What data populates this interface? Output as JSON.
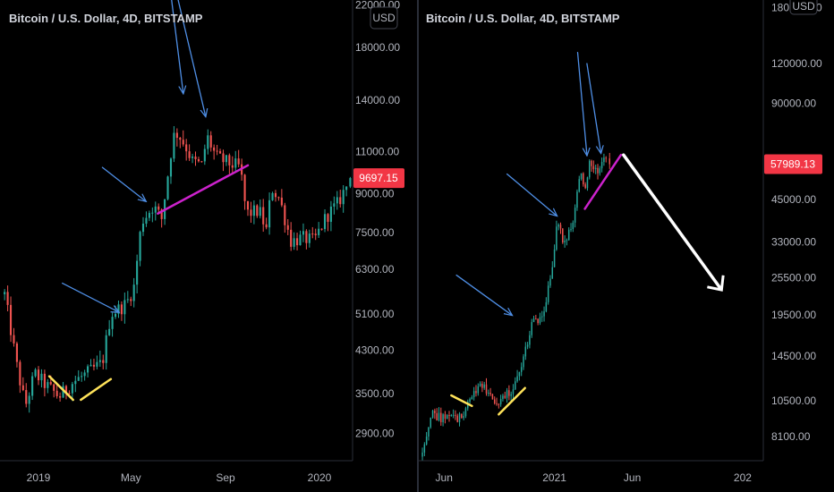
{
  "chart_data": [
    {
      "type": "candlestick",
      "title": "Bitcoin / U.S. Dollar, 4D, BITSTAMP",
      "currency_button": "USD",
      "last_price": 9697.15,
      "last_price_label": "9697.15",
      "scale": "log",
      "ylim": [
        2550,
        22500
      ],
      "x_ticks": [
        {
          "label": "2019",
          "date": "2019-01-01"
        },
        {
          "label": "May",
          "date": "2019-05-01"
        },
        {
          "label": "Sep",
          "date": "2019-09-01"
        },
        {
          "label": "2020",
          "date": "2020-01-01"
        }
      ],
      "y_ticks": [
        "22000.00",
        "18000.00",
        "14000.00",
        "11000.00",
        "9000.00",
        "7500.00",
        "6300.00",
        "5100.00",
        "4300.00",
        "3500.00",
        "2900.00"
      ],
      "price_points": [
        {
          "date": "2018-11-18",
          "price": 5600
        },
        {
          "date": "2018-12-05",
          "price": 3900
        },
        {
          "date": "2018-12-15",
          "price": 3300
        },
        {
          "date": "2018-12-27",
          "price": 3850
        },
        {
          "date": "2019-01-10",
          "price": 3650
        },
        {
          "date": "2019-01-28",
          "price": 3450
        },
        {
          "date": "2019-02-15",
          "price": 3700
        },
        {
          "date": "2019-03-05",
          "price": 3850
        },
        {
          "date": "2019-03-25",
          "price": 4050
        },
        {
          "date": "2019-04-05",
          "price": 5100
        },
        {
          "date": "2019-04-25",
          "price": 5350
        },
        {
          "date": "2019-05-05",
          "price": 5800
        },
        {
          "date": "2019-05-15",
          "price": 7900
        },
        {
          "date": "2019-05-30",
          "price": 8500
        },
        {
          "date": "2019-06-10",
          "price": 8000
        },
        {
          "date": "2019-06-25",
          "price": 11800
        },
        {
          "date": "2019-07-01",
          "price": 12000
        },
        {
          "date": "2019-07-12",
          "price": 11200
        },
        {
          "date": "2019-07-20",
          "price": 10500
        },
        {
          "date": "2019-08-01",
          "price": 10300
        },
        {
          "date": "2019-08-08",
          "price": 11800
        },
        {
          "date": "2019-08-20",
          "price": 10700
        },
        {
          "date": "2019-09-05",
          "price": 10400
        },
        {
          "date": "2019-09-20",
          "price": 10200
        },
        {
          "date": "2019-09-28",
          "price": 8200
        },
        {
          "date": "2019-10-15",
          "price": 8300
        },
        {
          "date": "2019-10-25",
          "price": 7500
        },
        {
          "date": "2019-10-30",
          "price": 9300
        },
        {
          "date": "2019-11-10",
          "price": 8800
        },
        {
          "date": "2019-11-25",
          "price": 7200
        },
        {
          "date": "2019-12-10",
          "price": 7300
        },
        {
          "date": "2019-12-25",
          "price": 7200
        },
        {
          "date": "2020-01-10",
          "price": 8100
        },
        {
          "date": "2020-01-25",
          "price": 8600
        },
        {
          "date": "2020-02-10",
          "price": 9697
        }
      ],
      "annotations": [
        {
          "kind": "arrow",
          "color": "#4f8fe6",
          "from": {
            "date": "2019-02-01",
            "price": 5900
          },
          "to": {
            "date": "2019-04-15",
            "price": 5150
          }
        },
        {
          "kind": "arrow",
          "color": "#4f8fe6",
          "from": {
            "date": "2019-03-25",
            "price": 10200
          },
          "to": {
            "date": "2019-05-20",
            "price": 8700
          }
        },
        {
          "kind": "arrow",
          "color": "#4f8fe6",
          "from": {
            "date": "2019-06-20",
            "price": 24500
          },
          "to": {
            "date": "2019-07-08",
            "price": 14500
          }
        },
        {
          "kind": "arrow",
          "color": "#4f8fe6",
          "from": {
            "date": "2019-06-30",
            "price": 23000
          },
          "to": {
            "date": "2019-08-06",
            "price": 13000
          }
        },
        {
          "kind": "line",
          "color": "#ffe35a",
          "from": {
            "date": "2019-01-15",
            "price": 3800
          },
          "to": {
            "date": "2019-02-15",
            "price": 3400
          }
        },
        {
          "kind": "line",
          "color": "#ffe35a",
          "from": {
            "date": "2019-02-25",
            "price": 3400
          },
          "to": {
            "date": "2019-04-05",
            "price": 3750
          }
        },
        {
          "kind": "line",
          "color": "#cc22cc",
          "from": {
            "date": "2019-06-05",
            "price": 8200
          },
          "to": {
            "date": "2019-09-30",
            "price": 10300
          }
        }
      ]
    },
    {
      "type": "candlestick",
      "title": "Bitcoin / U.S. Dollar, 4D, BITSTAMP",
      "currency_button": "USD",
      "last_price": 57989.13,
      "last_price_label": "57989.13",
      "scale": "log",
      "ylim": [
        6800,
        190000
      ],
      "x_ticks": [
        {
          "label": "Jun",
          "date": "2020-06-01"
        },
        {
          "label": "2021",
          "date": "2021-01-01"
        },
        {
          "label": "Jun",
          "date": "2021-06-01"
        },
        {
          "label": "202",
          "date": "2022-01-01"
        }
      ],
      "y_ticks": [
        "180000.00",
        "120000.00",
        "90000.00",
        "45000.00",
        "33000.00",
        "25500.00",
        "19500.00",
        "14500.00",
        "10500.00",
        "8100.00"
      ],
      "price_points": [
        {
          "date": "2020-04-20",
          "price": 7000
        },
        {
          "date": "2020-05-08",
          "price": 9700
        },
        {
          "date": "2020-05-25",
          "price": 9200
        },
        {
          "date": "2020-06-15",
          "price": 9400
        },
        {
          "date": "2020-07-05",
          "price": 9200
        },
        {
          "date": "2020-07-25",
          "price": 11000
        },
        {
          "date": "2020-08-15",
          "price": 11800
        },
        {
          "date": "2020-09-05",
          "price": 10200
        },
        {
          "date": "2020-09-25",
          "price": 10700
        },
        {
          "date": "2020-10-15",
          "price": 11500
        },
        {
          "date": "2020-10-30",
          "price": 13700
        },
        {
          "date": "2020-11-20",
          "price": 18500
        },
        {
          "date": "2020-12-10",
          "price": 19000
        },
        {
          "date": "2020-12-25",
          "price": 26000
        },
        {
          "date": "2021-01-08",
          "price": 39000
        },
        {
          "date": "2021-01-20",
          "price": 32000
        },
        {
          "date": "2021-02-05",
          "price": 38000
        },
        {
          "date": "2021-02-20",
          "price": 55000
        },
        {
          "date": "2021-03-01",
          "price": 47000
        },
        {
          "date": "2021-03-12",
          "price": 60000
        },
        {
          "date": "2021-03-25",
          "price": 53000
        },
        {
          "date": "2021-04-05",
          "price": 59000
        },
        {
          "date": "2021-04-18",
          "price": 57989
        }
      ],
      "annotations": [
        {
          "kind": "arrow",
          "color": "#4f8fe6",
          "from": {
            "date": "2020-06-25",
            "price": 26000
          },
          "to": {
            "date": "2020-10-10",
            "price": 19500
          }
        },
        {
          "kind": "arrow",
          "color": "#4f8fe6",
          "from": {
            "date": "2020-10-01",
            "price": 54000
          },
          "to": {
            "date": "2021-01-05",
            "price": 40000
          }
        },
        {
          "kind": "arrow",
          "color": "#4f8fe6",
          "from": {
            "date": "2021-02-15",
            "price": 130000
          },
          "to": {
            "date": "2021-03-05",
            "price": 62000
          }
        },
        {
          "kind": "arrow",
          "color": "#4f8fe6",
          "from": {
            "date": "2021-03-05",
            "price": 120000
          },
          "to": {
            "date": "2021-04-01",
            "price": 63000
          }
        },
        {
          "kind": "line",
          "color": "#ffe35a",
          "from": {
            "date": "2020-06-15",
            "price": 10900
          },
          "to": {
            "date": "2020-07-25",
            "price": 10100
          }
        },
        {
          "kind": "line",
          "color": "#ffe35a",
          "from": {
            "date": "2020-09-15",
            "price": 9500
          },
          "to": {
            "date": "2020-11-05",
            "price": 11500
          }
        },
        {
          "kind": "line",
          "color": "#cc22cc",
          "from": {
            "date": "2021-03-01",
            "price": 42000
          },
          "to": {
            "date": "2021-05-10",
            "price": 62000
          }
        },
        {
          "kind": "arrow",
          "color": "#ffffff",
          "from": {
            "date": "2021-05-15",
            "price": 62000
          },
          "to": {
            "date": "2021-11-20",
            "price": 23500
          }
        }
      ]
    }
  ],
  "colors": {
    "up": "#26a69a",
    "down": "#ef5350",
    "background": "#000000",
    "text": "#d1d4dc",
    "tick_text": "#b2b5be",
    "separator": "#2a2e39",
    "badge": "#f23645"
  }
}
